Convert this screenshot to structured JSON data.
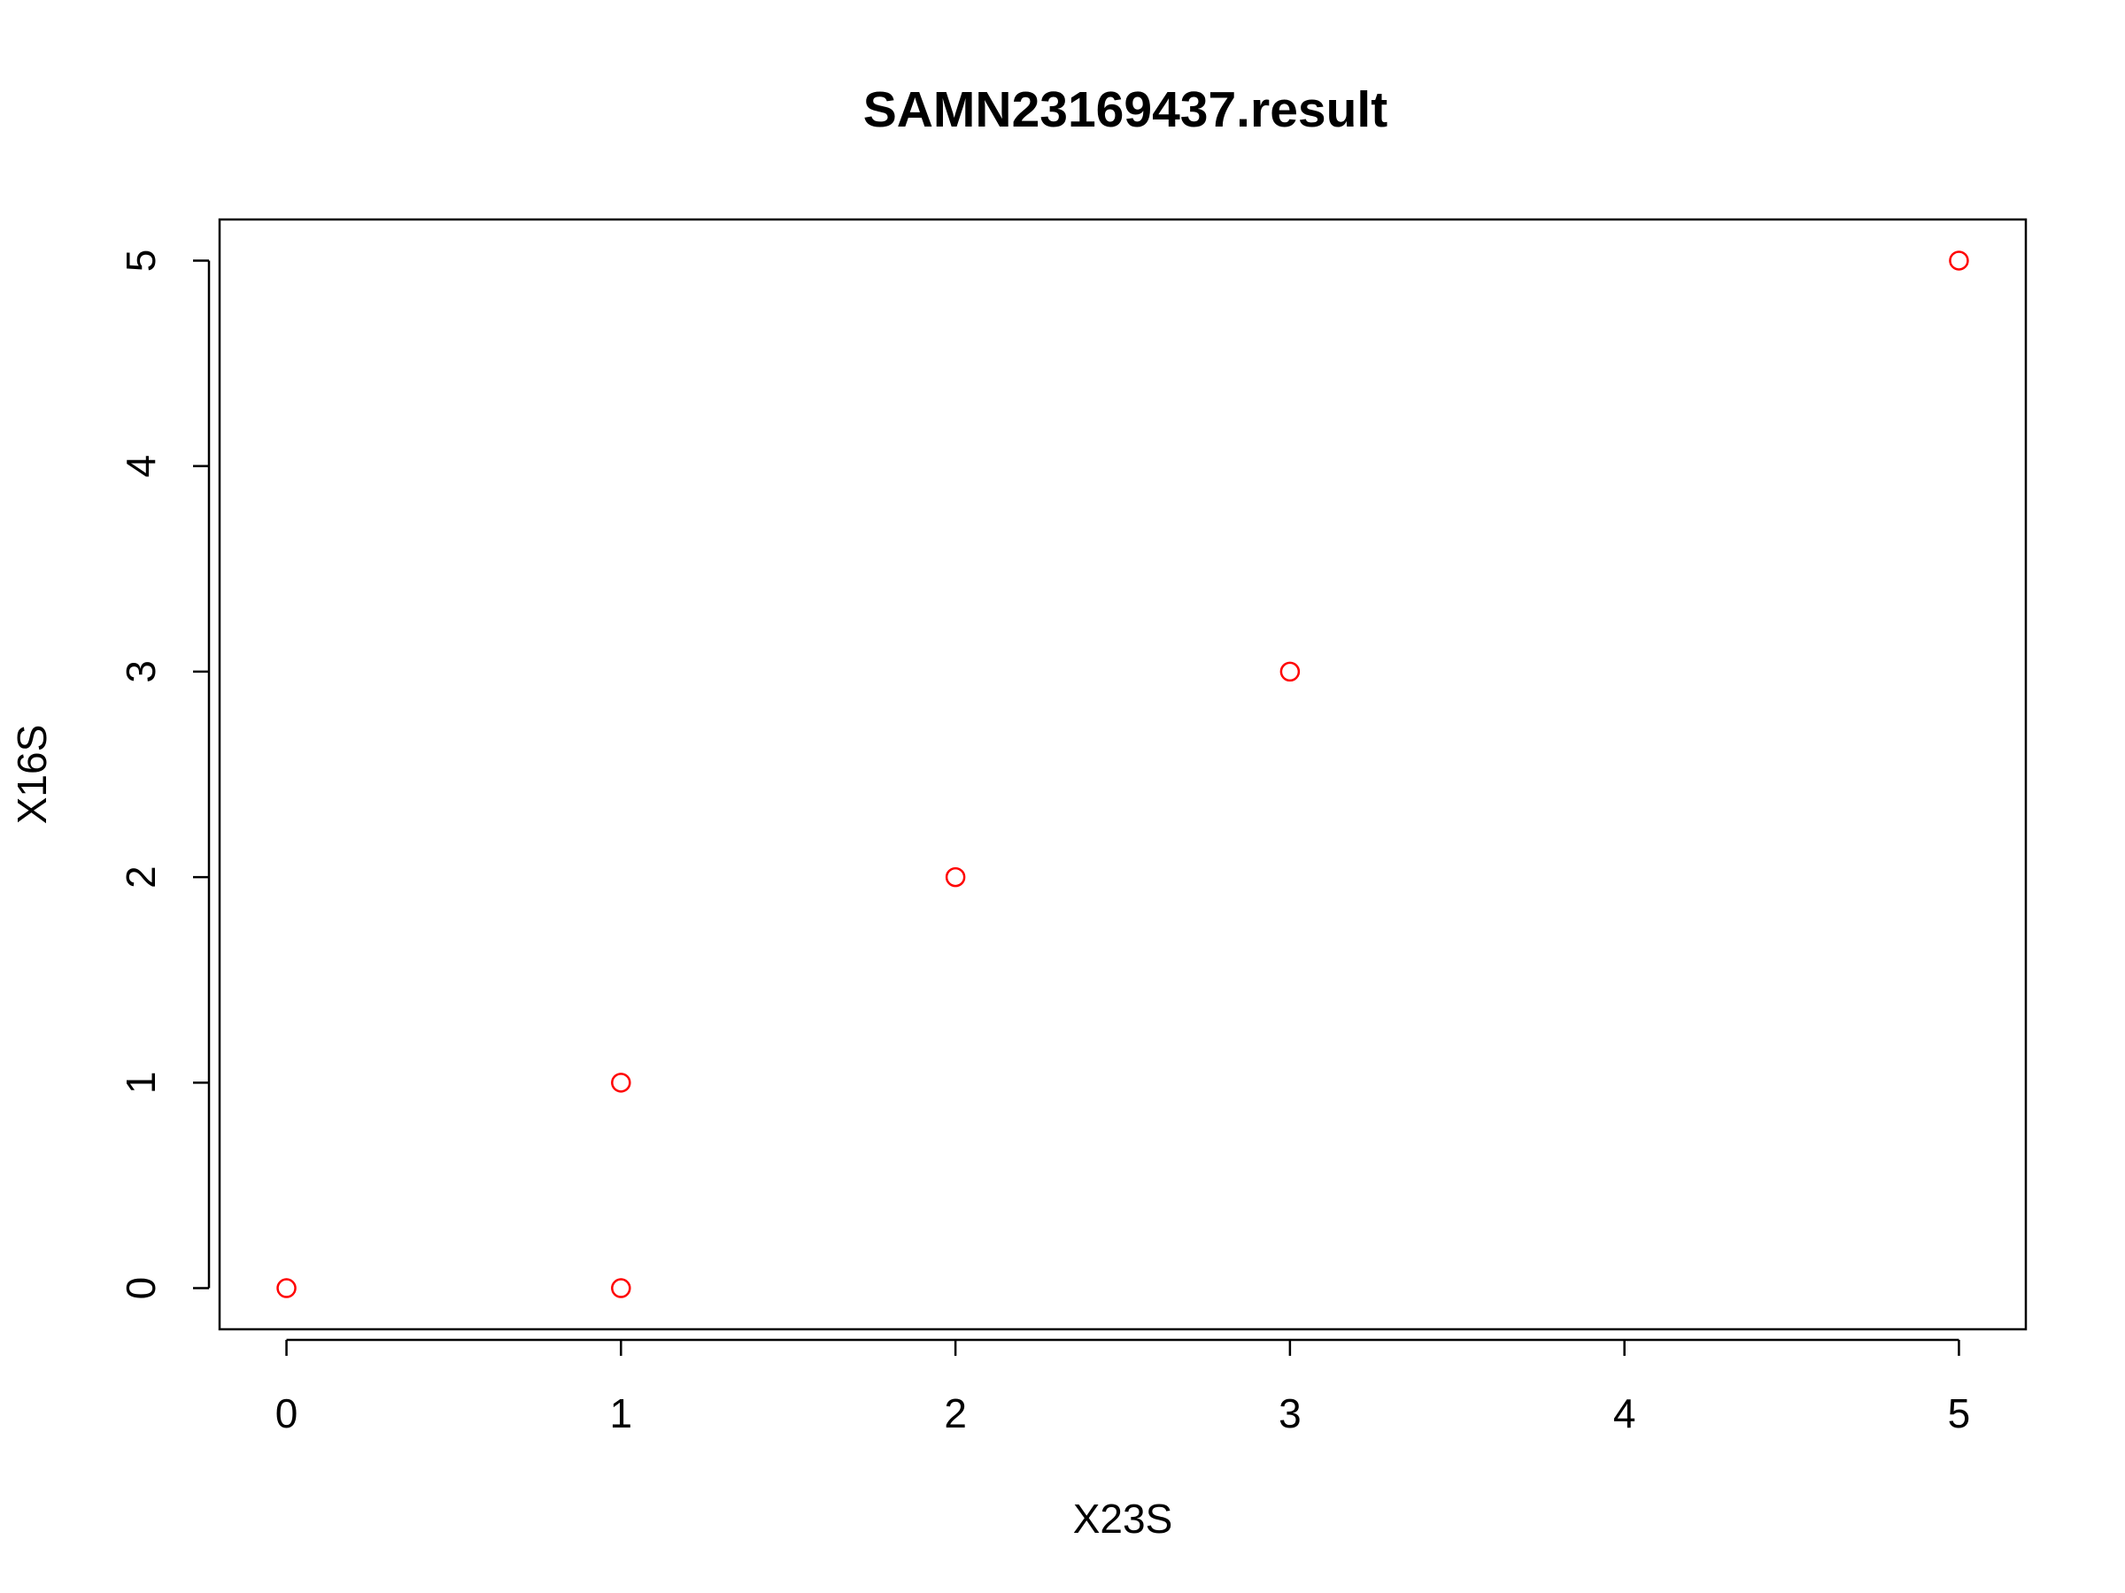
{
  "chart_data": {
    "type": "scatter",
    "title": "SAMN23169437.result",
    "xlabel": "X23S",
    "ylabel": "X16S",
    "xlim": [
      -0.2,
      5.2
    ],
    "ylim": [
      -0.2,
      5.2
    ],
    "x_ticks": [
      0,
      1,
      2,
      3,
      4,
      5
    ],
    "y_ticks": [
      0,
      1,
      2,
      3,
      4,
      5
    ],
    "grid": false,
    "point_color": "#ff0000",
    "points": [
      {
        "x": 0,
        "y": 0
      },
      {
        "x": 1,
        "y": 0
      },
      {
        "x": 1,
        "y": 1
      },
      {
        "x": 2,
        "y": 2
      },
      {
        "x": 3,
        "y": 3
      },
      {
        "x": 5,
        "y": 5
      }
    ]
  }
}
